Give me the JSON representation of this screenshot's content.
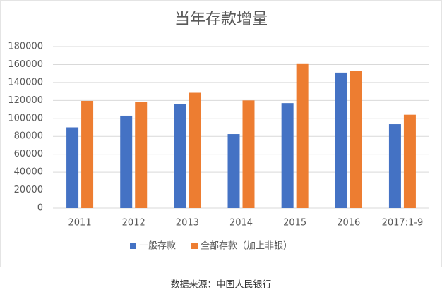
{
  "chart_data": {
    "type": "bar",
    "title": "当年存款增量",
    "categories": [
      "2011",
      "2012",
      "2013",
      "2014",
      "2015",
      "2016",
      "2017:1-9"
    ],
    "series": [
      {
        "name": "一般存款",
        "color": "#4472c4",
        "values": [
          90000,
          103000,
          116000,
          82500,
          117000,
          151000,
          93500
        ]
      },
      {
        "name": "全部存款（加上非银）",
        "color": "#ed7d31",
        "values": [
          119500,
          118000,
          128500,
          120000,
          160500,
          152500,
          104000
        ]
      }
    ],
    "ylim": [
      0,
      180000
    ],
    "yticks": [
      0,
      20000,
      40000,
      60000,
      80000,
      100000,
      120000,
      140000,
      160000,
      180000
    ],
    "grid": true,
    "legend": "bottom",
    "source": "数据来源：中国人民银行"
  }
}
